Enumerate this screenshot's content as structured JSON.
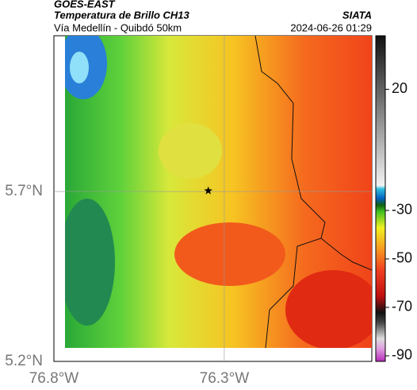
{
  "header": {
    "source": "GOES-EAST",
    "title": "Temperatura de Brillo CH13",
    "subtitle": "Vía Medellín - Quibdó 50km",
    "brand": "SIATA",
    "timestamp": "2024-06-26 01:29"
  },
  "map": {
    "xlim": [
      -76.8,
      -75.867
    ],
    "ylim": [
      5.2,
      6.158
    ],
    "xticks": [
      {
        "value": -76.8,
        "label": "76.8°W"
      },
      {
        "value": -76.3,
        "label": "76.3°W"
      }
    ],
    "yticks": [
      {
        "value": 5.2,
        "label": "5.2°N"
      },
      {
        "value": 5.7,
        "label": "5.7°N"
      }
    ],
    "marker": {
      "lon": -76.347,
      "lat": 5.702
    }
  },
  "colorbar": {
    "lim": [
      -92.3,
      42.1
    ],
    "ticks": [
      20,
      -30,
      -50,
      -70,
      -90
    ]
  }
}
